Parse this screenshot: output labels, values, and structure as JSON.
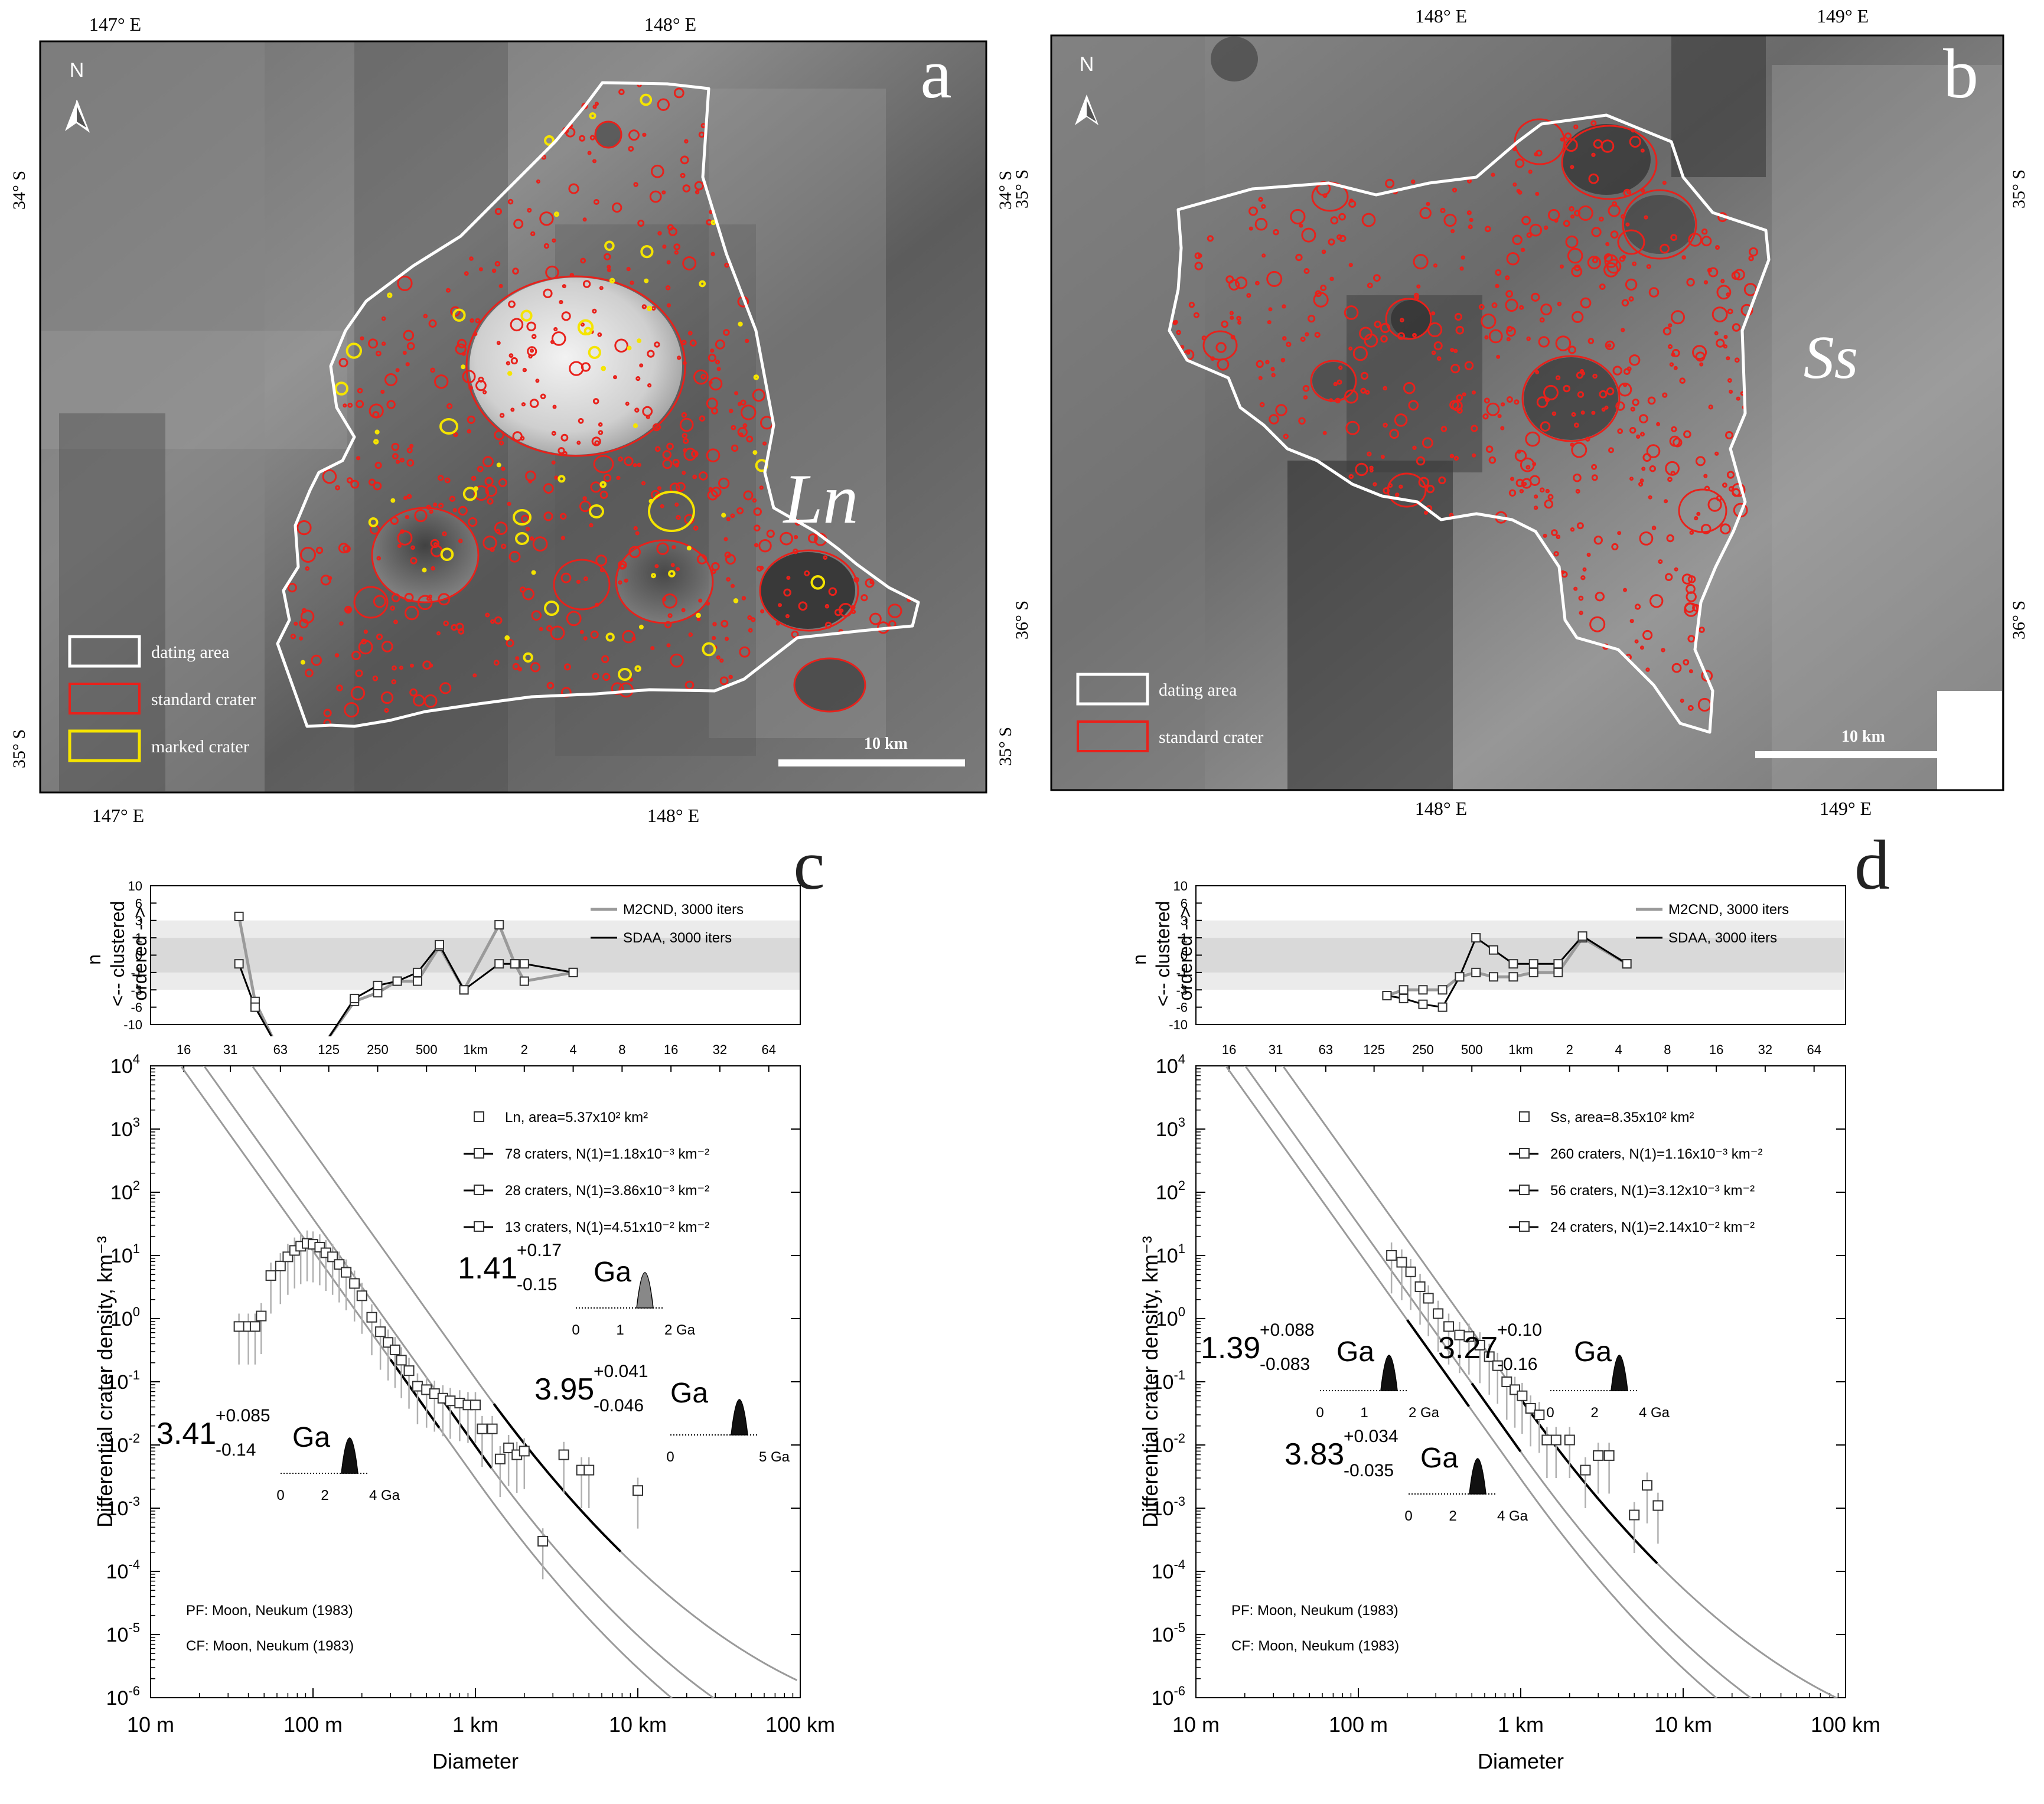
{
  "panel_a": {
    "letter": "a",
    "unit_label": "Ln",
    "lon_labels": [
      "147° E",
      "148° E"
    ],
    "lat_labels": [
      "34° S",
      "35° S"
    ],
    "north": "N",
    "scale": "10 km",
    "legend": [
      "dating area",
      "standard crater",
      "marked crater"
    ],
    "colors": {
      "dating_area": "#ffffff",
      "standard_crater": "#e8211b",
      "marked_crater": "#f5e400"
    }
  },
  "panel_b": {
    "letter": "b",
    "unit_label": "Ss",
    "lon_labels": [
      "148° E",
      "149° E"
    ],
    "lat_labels": [
      "35° S",
      "36° S"
    ],
    "north": "N",
    "scale": "10 km",
    "legend": [
      "dating area",
      "standard crater"
    ]
  },
  "chart_data": [
    {
      "panel": "c",
      "type": "scatter",
      "xlabel": "Diameter",
      "ylabel": "Differential crater density, km⁻³",
      "x_scale": "log",
      "y_scale": "log",
      "xlim_km": [
        0.01,
        100
      ],
      "ylim": [
        1e-06,
        10000.0
      ],
      "x_tick_labels": [
        "10 m",
        "100 m",
        "1 km",
        "10 km",
        "100 km"
      ],
      "top_axis_labels": [
        "16",
        "31",
        "63",
        "125",
        "250",
        "500",
        "1km",
        "2",
        "4",
        "8",
        "16",
        "32",
        "64"
      ],
      "legend": [
        "Ln, area=5.37x10² km²",
        "78 craters, N(1)=1.18x10⁻³ km⁻²",
        "28 craters, N(1)=3.86x10⁻³ km⁻²",
        "13 craters, N(1)=4.51x10⁻² km⁻²"
      ],
      "ages": [
        {
          "age": "1.41",
          "plus": "+0.17",
          "minus": "-0.15",
          "unit": "Ga",
          "axis": [
            "0",
            "1",
            "2 Ga"
          ]
        },
        {
          "age": "3.95",
          "plus": "+0.041",
          "minus": "-0.046",
          "unit": "Ga",
          "axis": [
            "0",
            "5 Ga"
          ]
        },
        {
          "age": "3.41",
          "plus": "+0.085",
          "minus": "-0.14",
          "unit": "Ga",
          "axis": [
            "0",
            "2",
            "4 Ga"
          ]
        }
      ],
      "notes": [
        "PF: Moon, Neukum (1983)",
        "CF: Moon, Neukum (1983)"
      ],
      "points": {
        "x_km": [
          0.035,
          0.04,
          0.044,
          0.048,
          0.055,
          0.063,
          0.07,
          0.077,
          0.084,
          0.092,
          0.1,
          0.11,
          0.12,
          0.132,
          0.145,
          0.16,
          0.18,
          0.2,
          0.23,
          0.26,
          0.29,
          0.32,
          0.35,
          0.39,
          0.44,
          0.5,
          0.56,
          0.63,
          0.7,
          0.8,
          0.9,
          1.0,
          1.1,
          1.27,
          1.42,
          1.6,
          1.8,
          2.0,
          2.6,
          3.5,
          4.5,
          5.0,
          10.0
        ],
        "y": [
          0.75,
          0.75,
          0.75,
          1.1,
          4.8,
          6.8,
          9.5,
          12,
          14,
          15.5,
          15,
          13.5,
          11,
          9.5,
          7.2,
          5.4,
          3.6,
          2.3,
          1.05,
          0.62,
          0.42,
          0.32,
          0.22,
          0.15,
          0.085,
          0.075,
          0.065,
          0.055,
          0.05,
          0.046,
          0.043,
          0.043,
          0.018,
          0.018,
          0.006,
          0.009,
          0.007,
          0.008,
          0.0003,
          0.007,
          0.004,
          0.004,
          0.0019
        ]
      },
      "fits": [
        {
          "name": "78 craters",
          "N1": 0.00118,
          "d_range_km": [
            0.3,
            0.6
          ]
        },
        {
          "name": "28 craters",
          "N1": 0.00386,
          "d_range_km": [
            0.6,
            1.3
          ]
        },
        {
          "name": "13 craters",
          "N1": 0.0451,
          "d_range_km": [
            1.3,
            8.0
          ]
        }
      ],
      "randomness": {
        "ylabel": "nσ  <-- clustered  ordered -->",
        "y_ticks": [
          "10",
          "6",
          "3",
          "1",
          "0",
          "-1",
          "-3",
          "-6",
          "-10"
        ],
        "legend": [
          "M2CND, 3000 iters",
          "SDAA, 3000 iters"
        ],
        "x_km": [
          0.035,
          0.044,
          0.058,
          0.075,
          0.1,
          0.125,
          0.18,
          0.25,
          0.33,
          0.44,
          0.6,
          0.85,
          1.4,
          1.75,
          2.0,
          4.0
        ],
        "m2cnd": [
          3.7,
          -5,
          -14,
          -14,
          -14,
          -13,
          -5,
          -3.5,
          -2,
          -2,
          0.5,
          -3,
          2.5,
          -0.5,
          -2,
          -1
        ],
        "sdaa": [
          -0.5,
          -6,
          -14,
          -14,
          -14,
          -13,
          -4.5,
          -2.5,
          -2,
          -1,
          0.6,
          -3,
          -0.5,
          -0.5,
          -0.5,
          -1
        ]
      }
    },
    {
      "panel": "d",
      "type": "scatter",
      "xlabel": "Diameter",
      "ylabel": "Differential crater density, km⁻³",
      "x_scale": "log",
      "y_scale": "log",
      "xlim_km": [
        0.01,
        100
      ],
      "ylim": [
        1e-06,
        10000.0
      ],
      "x_tick_labels": [
        "10 m",
        "100 m",
        "1 km",
        "10 km",
        "100 km"
      ],
      "top_axis_labels": [
        "16",
        "31",
        "63",
        "125",
        "250",
        "500",
        "1km",
        "2",
        "4",
        "8",
        "16",
        "32",
        "64"
      ],
      "legend": [
        "Ss, area=8.35x10² km²",
        "260 craters, N(1)=1.16x10⁻³ km⁻²",
        "56 craters, N(1)=3.12x10⁻³ km⁻²",
        "24 craters, N(1)=2.14x10⁻² km⁻²"
      ],
      "ages": [
        {
          "age": "1.39",
          "plus": "+0.088",
          "minus": "-0.083",
          "unit": "Ga",
          "axis": [
            "0",
            "1",
            "2 Ga"
          ]
        },
        {
          "age": "3.27",
          "plus": "+0.10",
          "minus": "-0.16",
          "unit": "Ga",
          "axis": [
            "0",
            "2",
            "4 Ga"
          ]
        },
        {
          "age": "3.83",
          "plus": "+0.034",
          "minus": "-0.035",
          "unit": "Ga",
          "axis": [
            "0",
            "2",
            "4 Ga"
          ]
        }
      ],
      "notes": [
        "PF: Moon, Neukum (1983)",
        "CF: Moon, Neukum (1983)"
      ],
      "points": {
        "x_km": [
          0.16,
          0.185,
          0.21,
          0.24,
          0.27,
          0.31,
          0.36,
          0.42,
          0.48,
          0.56,
          0.64,
          0.72,
          0.82,
          0.92,
          1.02,
          1.15,
          1.3,
          1.45,
          1.65,
          2.0,
          2.5,
          3.0,
          3.5,
          5.0,
          6.0,
          7.0
        ],
        "y": [
          10,
          7.8,
          5.5,
          3.2,
          2.1,
          1.2,
          0.75,
          0.55,
          0.52,
          0.38,
          0.25,
          0.18,
          0.1,
          0.075,
          0.06,
          0.038,
          0.03,
          0.012,
          0.012,
          0.012,
          0.004,
          0.0068,
          0.0068,
          0.00078,
          0.0023,
          0.0011
        ]
      },
      "fits": [
        {
          "name": "260 craters",
          "N1": 0.00116,
          "d_range_km": [
            0.2,
            0.5
          ]
        },
        {
          "name": "56 craters",
          "N1": 0.00312,
          "d_range_km": [
            0.5,
            1.0
          ]
        },
        {
          "name": "24 craters",
          "N1": 0.0214,
          "d_range_km": [
            1.0,
            7.0
          ]
        }
      ],
      "randomness": {
        "ylabel": "nσ  <-- clustered  ordered -->",
        "y_ticks": [
          "10",
          "6",
          "3",
          "1",
          "0",
          "-1",
          "-3",
          "-6",
          "-10"
        ],
        "legend": [
          "M2CND, 3000 iters",
          "SDAA, 3000 iters"
        ],
        "x_km": [
          0.15,
          0.19,
          0.25,
          0.33,
          0.42,
          0.53,
          0.68,
          0.9,
          1.2,
          1.7,
          2.4,
          4.5
        ],
        "m2cnd": [
          -4,
          -3,
          -3,
          -3,
          -1.5,
          -1,
          -1.5,
          -1.5,
          -1,
          -1,
          1,
          -0.5
        ],
        "sdaa": [
          -4,
          -4.5,
          -5.5,
          -6,
          -1.5,
          1,
          0.3,
          -0.5,
          -0.5,
          -0.5,
          1.2,
          -0.5
        ]
      }
    }
  ]
}
